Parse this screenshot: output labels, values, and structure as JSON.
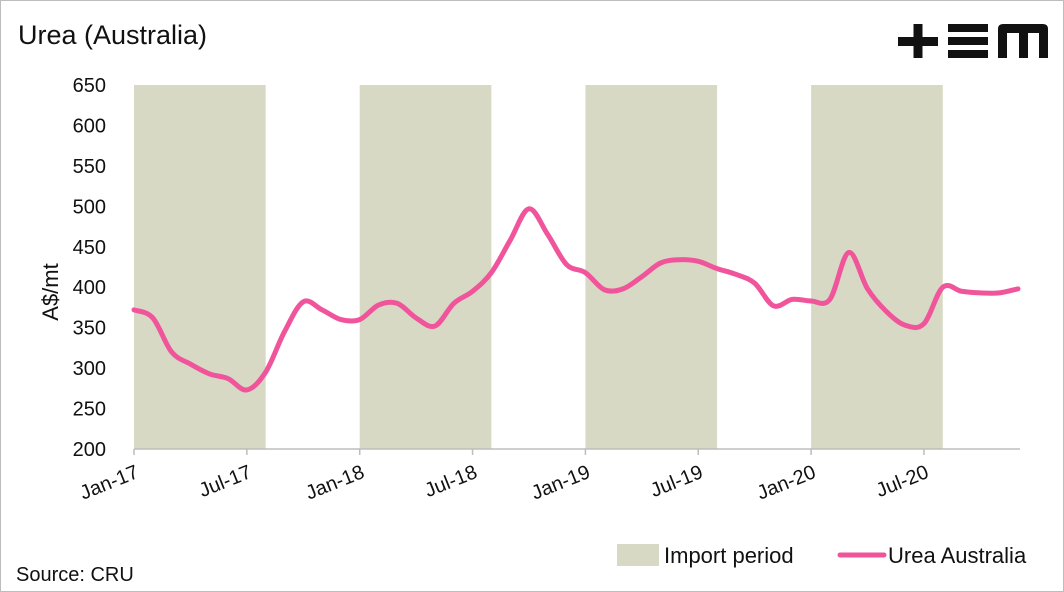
{
  "title": "Urea (Australia)",
  "source": "Source: CRU",
  "colors": {
    "import_band": "#d8d9c5",
    "line": "#f0559b",
    "logo": "#111111"
  },
  "logo_icon": "tem-logo-icon",
  "chart_data": {
    "type": "line",
    "title": "Urea (Australia)",
    "ylabel": "A$/mt",
    "xlabel": "",
    "ylim": [
      200,
      650
    ],
    "yticks": [
      "200",
      "250",
      "300",
      "350",
      "400",
      "450",
      "500",
      "550",
      "600",
      "650"
    ],
    "xticks": [
      {
        "label": "Jan-17",
        "t": 0
      },
      {
        "label": "Jul-17",
        "t": 6
      },
      {
        "label": "Jan-18",
        "t": 12
      },
      {
        "label": "Jul-18",
        "t": 18
      },
      {
        "label": "Jan-19",
        "t": 24
      },
      {
        "label": "Jul-19",
        "t": 30
      },
      {
        "label": "Jan-20",
        "t": 36
      },
      {
        "label": "Jul-20",
        "t": 42
      }
    ],
    "bands": [
      [
        0,
        7
      ],
      [
        12,
        19
      ],
      [
        24,
        31
      ],
      [
        36,
        43
      ]
    ],
    "band_name": "Import period",
    "series": [
      {
        "name": "Urea Australia",
        "x": [
          0,
          1,
          2,
          3,
          4,
          5,
          6,
          7,
          8,
          9,
          10,
          11,
          12,
          13,
          14,
          15,
          16,
          17,
          18,
          19,
          20,
          21,
          22,
          23,
          24,
          25,
          26,
          27,
          28,
          29,
          30,
          31,
          32,
          33,
          34,
          35,
          36,
          37,
          38,
          39,
          40,
          41,
          42,
          43,
          44,
          45,
          46,
          47
        ],
        "values": [
          372,
          362,
          320,
          305,
          293,
          287,
          273,
          295,
          345,
          382,
          372,
          360,
          360,
          378,
          380,
          362,
          352,
          380,
          395,
          418,
          458,
          497,
          465,
          428,
          418,
          397,
          398,
          413,
          430,
          434,
          432,
          423,
          416,
          405,
          377,
          385,
          383,
          385,
          443,
          398,
          370,
          353,
          355,
          400,
          395,
          393,
          393,
          398
        ]
      }
    ],
    "legend": {
      "position": "bottom-right",
      "entries": [
        "Import period",
        "Urea Australia"
      ]
    }
  }
}
